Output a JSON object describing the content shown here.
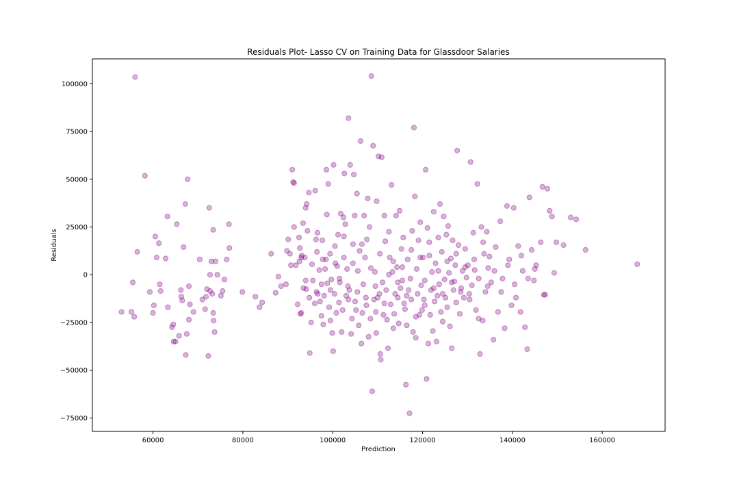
{
  "chart_data": {
    "type": "scatter",
    "title": "Residuals Plot- Lasso CV on Training Data for Glassdoor Salaries",
    "xlabel": "Prediction",
    "ylabel": "Residuals",
    "xlim": [
      46500,
      174000
    ],
    "ylim": [
      -82000,
      113000
    ],
    "xticks": [
      60000,
      80000,
      100000,
      120000,
      140000,
      160000
    ],
    "yticks": [
      -75000,
      -50000,
      -25000,
      0,
      25000,
      50000,
      75000,
      100000
    ],
    "grid": false,
    "marker_color": "#800080",
    "marker_alpha": 0.3,
    "points": [
      [
        56000,
        103500
      ],
      [
        58200,
        51800
      ],
      [
        56500,
        12000
      ],
      [
        55500,
        -4000
      ],
      [
        53000,
        -19500
      ],
      [
        55200,
        -19500
      ],
      [
        55800,
        -22000
      ],
      [
        59300,
        -9000
      ],
      [
        60200,
        -16000
      ],
      [
        60000,
        -20000
      ],
      [
        60500,
        20000
      ],
      [
        60800,
        9000
      ],
      [
        61300,
        16500
      ],
      [
        61700,
        -8500
      ],
      [
        61500,
        -5000
      ],
      [
        62800,
        8500
      ],
      [
        63200,
        30500
      ],
      [
        63300,
        -17000
      ],
      [
        64200,
        -27500
      ],
      [
        64500,
        -26000
      ],
      [
        64600,
        -35000
      ],
      [
        65000,
        -35000
      ],
      [
        65300,
        26500
      ],
      [
        65800,
        -32000
      ],
      [
        66200,
        -8000
      ],
      [
        66300,
        -11500
      ],
      [
        66500,
        -13500
      ],
      [
        66800,
        14500
      ],
      [
        67200,
        37000
      ],
      [
        67300,
        -42000
      ],
      [
        67500,
        -31000
      ],
      [
        67700,
        50000
      ],
      [
        68000,
        -23500
      ],
      [
        68000,
        -6000
      ],
      [
        68200,
        -15500
      ],
      [
        69000,
        -19500
      ],
      [
        70400,
        8000
      ],
      [
        71000,
        -13000
      ],
      [
        71600,
        -18000
      ],
      [
        71800,
        -11500
      ],
      [
        72000,
        -7500
      ],
      [
        72300,
        -42500
      ],
      [
        72500,
        35000
      ],
      [
        72700,
        -8500
      ],
      [
        72700,
        0
      ],
      [
        73000,
        7000
      ],
      [
        73200,
        -10000
      ],
      [
        73400,
        23500
      ],
      [
        73400,
        -20000
      ],
      [
        73500,
        -24000
      ],
      [
        73700,
        -30000
      ],
      [
        73900,
        7000
      ],
      [
        74300,
        0
      ],
      [
        75100,
        -11000
      ],
      [
        75500,
        -8500
      ],
      [
        75900,
        -2500
      ],
      [
        76400,
        8000
      ],
      [
        76900,
        26500
      ],
      [
        77000,
        14000
      ],
      [
        79900,
        -9000
      ],
      [
        82800,
        -11500
      ],
      [
        83700,
        -17000
      ],
      [
        84300,
        -14500
      ],
      [
        86300,
        11000
      ],
      [
        87300,
        -9500
      ],
      [
        87900,
        -1000
      ],
      [
        88500,
        -6000
      ],
      [
        89600,
        -5000
      ],
      [
        89800,
        12500
      ],
      [
        90100,
        18500
      ],
      [
        90500,
        11000
      ],
      [
        90700,
        5000
      ],
      [
        91000,
        55000
      ],
      [
        91200,
        48500
      ],
      [
        91400,
        48000
      ],
      [
        91400,
        25000
      ],
      [
        91800,
        5000
      ],
      [
        92200,
        -15500
      ],
      [
        92500,
        19500
      ],
      [
        92600,
        7000
      ],
      [
        92700,
        14000
      ],
      [
        92800,
        -20500
      ],
      [
        93000,
        -20000
      ],
      [
        93100,
        10000
      ],
      [
        93400,
        27000
      ],
      [
        93500,
        -7000
      ],
      [
        93800,
        9000
      ],
      [
        94000,
        35000
      ],
      [
        94100,
        -7500
      ],
      [
        94200,
        37000
      ],
      [
        94400,
        23000
      ],
      [
        94700,
        43000
      ],
      [
        94800,
        -12000
      ],
      [
        94900,
        -41000
      ],
      [
        95200,
        -25000
      ],
      [
        95400,
        5500
      ],
      [
        95600,
        -3000
      ],
      [
        96000,
        -15000
      ],
      [
        96100,
        44000
      ],
      [
        96300,
        18500
      ],
      [
        96400,
        -9000
      ],
      [
        96600,
        22000
      ],
      [
        96700,
        -10000
      ],
      [
        97000,
        2500
      ],
      [
        97200,
        -14000
      ],
      [
        97500,
        -21500
      ],
      [
        97700,
        18000
      ],
      [
        97800,
        8000
      ],
      [
        97900,
        -26000
      ],
      [
        98100,
        -11000
      ],
      [
        98300,
        3000
      ],
      [
        98600,
        55000
      ],
      [
        98700,
        31500
      ],
      [
        98800,
        -4500
      ],
      [
        99000,
        47500
      ],
      [
        99200,
        -17000
      ],
      [
        99400,
        11000
      ],
      [
        99500,
        -24000
      ],
      [
        99700,
        -2500
      ],
      [
        99900,
        -30500
      ],
      [
        100100,
        -40000
      ],
      [
        100200,
        57500
      ],
      [
        100400,
        -10000
      ],
      [
        100600,
        6000
      ],
      [
        100800,
        -20000
      ],
      [
        101000,
        4500
      ],
      [
        101200,
        21000
      ],
      [
        101400,
        -14500
      ],
      [
        101600,
        -4000
      ],
      [
        101800,
        32000
      ],
      [
        102000,
        -30000
      ],
      [
        102200,
        -18500
      ],
      [
        102400,
        30000
      ],
      [
        102500,
        9000
      ],
      [
        102600,
        53000
      ],
      [
        102800,
        26500
      ],
      [
        103000,
        -11000
      ],
      [
        103200,
        3000
      ],
      [
        103400,
        -6000
      ],
      [
        103500,
        82000
      ],
      [
        103700,
        -8000
      ],
      [
        103900,
        57500
      ],
      [
        104100,
        -31000
      ],
      [
        104300,
        -23000
      ],
      [
        104500,
        16000
      ],
      [
        104700,
        52500
      ],
      [
        104900,
        31000
      ],
      [
        105000,
        -14000
      ],
      [
        105200,
        -18500
      ],
      [
        105400,
        42500
      ],
      [
        105600,
        2000
      ],
      [
        105800,
        -26500
      ],
      [
        106000,
        12500
      ],
      [
        106200,
        70000
      ],
      [
        106400,
        -36000
      ],
      [
        106600,
        -20000
      ],
      [
        106800,
        -5000
      ],
      [
        107000,
        31000
      ],
      [
        107200,
        9000
      ],
      [
        107400,
        -12000
      ],
      [
        107600,
        18500
      ],
      [
        107800,
        40000
      ],
      [
        108000,
        -32500
      ],
      [
        108200,
        25000
      ],
      [
        108400,
        -23000
      ],
      [
        108600,
        104000
      ],
      [
        108800,
        -61000
      ],
      [
        109000,
        67500
      ],
      [
        109200,
        -13000
      ],
      [
        109400,
        1500
      ],
      [
        109600,
        -19500
      ],
      [
        109700,
        -30500
      ],
      [
        109800,
        38500
      ],
      [
        110000,
        -12000
      ],
      [
        110200,
        62000
      ],
      [
        110400,
        -10000
      ],
      [
        110600,
        -41500
      ],
      [
        110700,
        -44500
      ],
      [
        110900,
        61500
      ],
      [
        111100,
        -4000
      ],
      [
        111300,
        -21000
      ],
      [
        111500,
        31000
      ],
      [
        111700,
        17500
      ],
      [
        111900,
        -8000
      ],
      [
        112100,
        -23500
      ],
      [
        112300,
        -38500
      ],
      [
        112500,
        22500
      ],
      [
        112700,
        9000
      ],
      [
        112900,
        -15500
      ],
      [
        113100,
        47000
      ],
      [
        113300,
        1500
      ],
      [
        113500,
        -28000
      ],
      [
        113700,
        -20500
      ],
      [
        113900,
        -10000
      ],
      [
        114100,
        31000
      ],
      [
        114300,
        4000
      ],
      [
        114500,
        -12000
      ],
      [
        114700,
        -25500
      ],
      [
        114900,
        33500
      ],
      [
        115100,
        -7000
      ],
      [
        115300,
        13500
      ],
      [
        115500,
        -3000
      ],
      [
        115700,
        19500
      ],
      [
        115900,
        -15000
      ],
      [
        116100,
        -18000
      ],
      [
        116300,
        -57500
      ],
      [
        116500,
        -26500
      ],
      [
        116700,
        8000
      ],
      [
        116900,
        -8000
      ],
      [
        117100,
        -72500
      ],
      [
        117300,
        -2000
      ],
      [
        117500,
        -13000
      ],
      [
        117700,
        23000
      ],
      [
        117900,
        -30000
      ],
      [
        118100,
        77000
      ],
      [
        118300,
        41000
      ],
      [
        118500,
        -33000
      ],
      [
        118700,
        3000
      ],
      [
        118900,
        -10000
      ],
      [
        119100,
        18000
      ],
      [
        119300,
        -21000
      ],
      [
        119500,
        27500
      ],
      [
        119700,
        -5500
      ],
      [
        119900,
        -18500
      ],
      [
        120100,
        9000
      ],
      [
        120300,
        -13000
      ],
      [
        120500,
        -3000
      ],
      [
        120700,
        55000
      ],
      [
        120900,
        -54500
      ],
      [
        121100,
        24500
      ],
      [
        121300,
        -36000
      ],
      [
        121500,
        10000
      ],
      [
        121700,
        -21000
      ],
      [
        121900,
        -8000
      ],
      [
        122100,
        1500
      ],
      [
        122300,
        -29500
      ],
      [
        122500,
        33000
      ],
      [
        122700,
        -14000
      ],
      [
        122900,
        6000
      ],
      [
        123100,
        -35000
      ],
      [
        123300,
        -11000
      ],
      [
        123500,
        19500
      ],
      [
        123700,
        -5000
      ],
      [
        123900,
        37000
      ],
      [
        124100,
        -19500
      ],
      [
        124300,
        12000
      ],
      [
        124500,
        -24500
      ],
      [
        124700,
        30500
      ],
      [
        124900,
        -2500
      ],
      [
        125100,
        -12000
      ],
      [
        125300,
        21000
      ],
      [
        125500,
        -17000
      ],
      [
        125700,
        25500
      ],
      [
        125900,
        1000
      ],
      [
        126100,
        -27000
      ],
      [
        126300,
        8500
      ],
      [
        126500,
        -38500
      ],
      [
        126700,
        18000
      ],
      [
        126900,
        -8000
      ],
      [
        127100,
        -3500
      ],
      [
        127300,
        5000
      ],
      [
        127500,
        -14500
      ],
      [
        127700,
        65000
      ],
      [
        128000,
        15500
      ],
      [
        128300,
        -20500
      ],
      [
        128600,
        -7000
      ],
      [
        128900,
        2000
      ],
      [
        129200,
        -12000
      ],
      [
        129500,
        13500
      ],
      [
        129800,
        -1500
      ],
      [
        130100,
        5000
      ],
      [
        130400,
        -10000
      ],
      [
        130700,
        59000
      ],
      [
        131000,
        -5500
      ],
      [
        131300,
        22000
      ],
      [
        131600,
        2500
      ],
      [
        131900,
        -18500
      ],
      [
        132200,
        47500
      ],
      [
        132500,
        -23000
      ],
      [
        132800,
        -41500
      ],
      [
        133100,
        25000
      ],
      [
        133400,
        -24000
      ],
      [
        133700,
        11000
      ],
      [
        134000,
        -9000
      ],
      [
        134300,
        22500
      ],
      [
        134600,
        3500
      ],
      [
        134900,
        9500
      ],
      [
        135300,
        -4000
      ],
      [
        135800,
        -34000
      ],
      [
        136300,
        14500
      ],
      [
        136800,
        -19500
      ],
      [
        137300,
        28000
      ],
      [
        137800,
        -2000
      ],
      [
        138300,
        -28000
      ],
      [
        138800,
        36000
      ],
      [
        139300,
        8000
      ],
      [
        139800,
        -16000
      ],
      [
        140300,
        35000
      ],
      [
        140800,
        -12000
      ],
      [
        141300,
        15000
      ],
      [
        141800,
        -19500
      ],
      [
        142300,
        2000
      ],
      [
        142800,
        -27500
      ],
      [
        143300,
        -39000
      ],
      [
        143800,
        40500
      ],
      [
        144300,
        13000
      ],
      [
        144800,
        -3000
      ],
      [
        145300,
        5000
      ],
      [
        146300,
        17000
      ],
      [
        146700,
        46000
      ],
      [
        147000,
        -10500
      ],
      [
        147300,
        -10500
      ],
      [
        147800,
        45000
      ],
      [
        148300,
        33500
      ],
      [
        148800,
        30500
      ],
      [
        149300,
        1000
      ],
      [
        149800,
        17000
      ],
      [
        151400,
        15500
      ],
      [
        153000,
        30000
      ],
      [
        154200,
        29000
      ],
      [
        156300,
        13000
      ],
      [
        167800,
        5500
      ],
      [
        93000,
        9000
      ],
      [
        94000,
        -3000
      ],
      [
        96500,
        12000
      ],
      [
        97500,
        -5000
      ],
      [
        98500,
        8000
      ],
      [
        99500,
        -8000
      ],
      [
        100500,
        15000
      ],
      [
        101500,
        -2000
      ],
      [
        102500,
        20000
      ],
      [
        103500,
        -13000
      ],
      [
        104500,
        6000
      ],
      [
        105500,
        -9000
      ],
      [
        106500,
        16000
      ],
      [
        107500,
        -16000
      ],
      [
        108500,
        3500
      ],
      [
        109500,
        -6000
      ],
      [
        110500,
        11000
      ],
      [
        111500,
        -15000
      ],
      [
        112500,
        0
      ],
      [
        113500,
        7000
      ],
      [
        114500,
        -4000
      ],
      [
        115500,
        4000
      ],
      [
        116500,
        -11000
      ],
      [
        117500,
        13000
      ],
      [
        118500,
        -22000
      ],
      [
        119500,
        9000
      ],
      [
        120500,
        -16000
      ],
      [
        121500,
        17000
      ],
      [
        122500,
        -7000
      ],
      [
        123500,
        2000
      ],
      [
        124500,
        -10000
      ],
      [
        125500,
        7000
      ],
      [
        126500,
        -4000
      ],
      [
        127500,
        11000
      ],
      [
        128500,
        -9000
      ],
      [
        129500,
        4000
      ],
      [
        130500,
        -13000
      ],
      [
        131500,
        8000
      ],
      [
        132500,
        -2000
      ],
      [
        133500,
        17000
      ],
      [
        134500,
        -6000
      ],
      [
        136000,
        2000
      ],
      [
        137500,
        -9000
      ],
      [
        139000,
        5000
      ],
      [
        140500,
        -5000
      ],
      [
        142000,
        10000
      ],
      [
        143500,
        -2000
      ],
      [
        145000,
        3000
      ]
    ]
  }
}
